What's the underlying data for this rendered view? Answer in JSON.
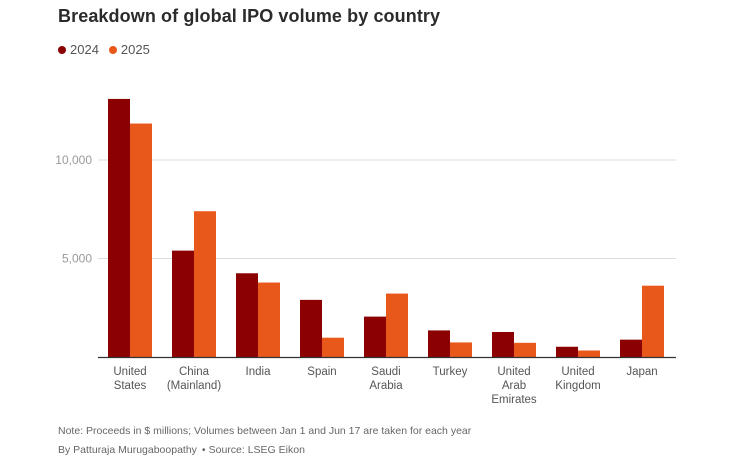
{
  "title": "Breakdown of global IPO volume by country",
  "note": "Note: Proceeds in $ millions; Volumes between Jan 1 and Jun 17 are taken for each year",
  "byline": "By Patturaja Murugaboopathy",
  "bullet": "•",
  "source": "Source: LSEG Eikon",
  "colors": {
    "series_2024": "#8b0000",
    "series_2025": "#e8581b",
    "grid": "#dcdcdc",
    "axis": "#333333",
    "tick_text": "#9a9a9a",
    "label_text": "#555555"
  },
  "chart_data": {
    "type": "bar",
    "title": "Breakdown of global IPO volume by country",
    "xlabel": "",
    "ylabel": "",
    "categories": [
      [
        "United",
        "States"
      ],
      [
        "China",
        "(Mainland)"
      ],
      [
        "India"
      ],
      [
        "Spain"
      ],
      [
        "Saudi",
        "Arabia"
      ],
      [
        "Turkey"
      ],
      [
        "United",
        "Arab",
        "Emirates"
      ],
      [
        "United",
        "Kingdom"
      ],
      [
        "Japan"
      ]
    ],
    "series": [
      {
        "name": "2024",
        "values": [
          13100,
          5400,
          4250,
          2900,
          2050,
          1350,
          1270,
          520,
          880
        ]
      },
      {
        "name": "2025",
        "values": [
          11850,
          7400,
          3780,
          980,
          3220,
          740,
          720,
          330,
          3620
        ]
      }
    ],
    "ylim": [
      0,
      13500
    ],
    "yticks": [
      5000,
      10000
    ],
    "ytick_labels": [
      "5,000",
      "10,000"
    ],
    "grid": true,
    "legend": "top-left"
  }
}
